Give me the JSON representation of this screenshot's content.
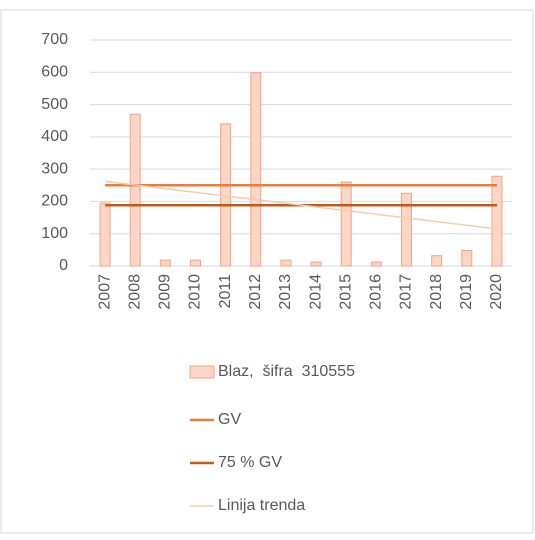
{
  "chart_data": {
    "type": "bar",
    "categories": [
      "2007",
      "2008",
      "2009",
      "2010",
      "2011",
      "2012",
      "2013",
      "2014",
      "2015",
      "2016",
      "2017",
      "2018",
      "2019",
      "2020"
    ],
    "series": [
      {
        "name": "Blaz,  šifra  310555",
        "type": "bar",
        "color": "#fbd5c5",
        "stroke": "#f4a582",
        "values": [
          195,
          470,
          18,
          18,
          440,
          598,
          18,
          12,
          260,
          12,
          225,
          32,
          48,
          278
        ]
      },
      {
        "name": "GV",
        "type": "line",
        "color": "#ed7d31",
        "values": [
          250,
          250,
          250,
          250,
          250,
          250,
          250,
          250,
          250,
          250,
          250,
          250,
          250,
          250
        ]
      },
      {
        "name": "75 % GV",
        "type": "line",
        "color": "#c55a11",
        "values": [
          188,
          188,
          188,
          188,
          188,
          188,
          188,
          188,
          188,
          188,
          188,
          188,
          188,
          188
        ]
      },
      {
        "name": "Linija trenda",
        "type": "line",
        "color": "#f8cbad",
        "values": [
          262,
          250.7,
          239.4,
          228.1,
          216.8,
          205.5,
          194.2,
          182.8,
          171.5,
          160.2,
          148.9,
          137.6,
          126.3,
          115
        ]
      }
    ],
    "ylim": [
      0,
      700
    ],
    "yticks": [
      0,
      100,
      200,
      300,
      400,
      500,
      600,
      700
    ],
    "grid": true
  }
}
